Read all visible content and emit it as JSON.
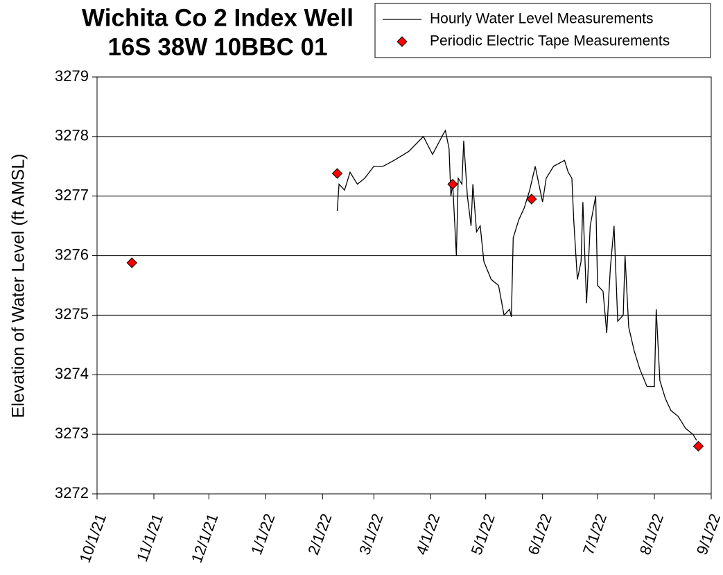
{
  "chart_data": {
    "type": "line",
    "title": "Wichita Co 2 Index Well",
    "subtitle": "16S 38W 10BBC 01",
    "y_label": "Elevation of Water Level (ft AMSL)",
    "ylim": [
      3272,
      3279
    ],
    "yticks": [
      3272,
      3273,
      3274,
      3275,
      3276,
      3277,
      3278,
      3279
    ],
    "xlim": [
      "2021-10-01",
      "2022-09-01"
    ],
    "xticks": [
      {
        "value": "2021-10-01",
        "label": "10/1/21"
      },
      {
        "value": "2021-11-01",
        "label": "11/1/21"
      },
      {
        "value": "2021-12-01",
        "label": "12/1/21"
      },
      {
        "value": "2022-01-01",
        "label": "1/1/22"
      },
      {
        "value": "2022-02-01",
        "label": "2/1/22"
      },
      {
        "value": "2022-03-01",
        "label": "3/1/22"
      },
      {
        "value": "2022-04-01",
        "label": "4/1/22"
      },
      {
        "value": "2022-05-01",
        "label": "5/1/22"
      },
      {
        "value": "2022-06-01",
        "label": "6/1/22"
      },
      {
        "value": "2022-07-01",
        "label": "7/1/22"
      },
      {
        "value": "2022-08-01",
        "label": "8/1/22"
      },
      {
        "value": "2022-09-01",
        "label": "9/1/22"
      }
    ],
    "grid": true,
    "legend": "top-right",
    "series": [
      {
        "name": "Hourly Water Level Measurements",
        "color": "#000000",
        "marker": "line",
        "x": [
          "2022-02-09",
          "2022-02-10",
          "2022-02-13",
          "2022-02-16",
          "2022-02-20",
          "2022-02-24",
          "2022-03-01",
          "2022-03-06",
          "2022-03-12",
          "2022-03-20",
          "2022-03-28",
          "2022-04-02",
          "2022-04-08",
          "2022-04-09",
          "2022-04-11",
          "2022-04-12",
          "2022-04-13",
          "2022-04-15",
          "2022-04-16",
          "2022-04-18",
          "2022-04-19",
          "2022-04-21",
          "2022-04-23",
          "2022-04-24",
          "2022-04-26",
          "2022-04-28",
          "2022-04-30",
          "2022-05-04",
          "2022-05-08",
          "2022-05-11",
          "2022-05-14",
          "2022-05-15",
          "2022-05-16",
          "2022-05-19",
          "2022-05-22",
          "2022-05-25",
          "2022-05-28",
          "2022-06-01",
          "2022-06-03",
          "2022-06-07",
          "2022-06-13",
          "2022-06-15",
          "2022-06-17",
          "2022-06-18",
          "2022-06-20",
          "2022-06-22",
          "2022-06-23",
          "2022-06-25",
          "2022-06-27",
          "2022-06-30",
          "2022-07-01",
          "2022-07-04",
          "2022-07-06",
          "2022-07-08",
          "2022-07-10",
          "2022-07-12",
          "2022-07-15",
          "2022-07-16",
          "2022-07-18",
          "2022-07-21",
          "2022-07-24",
          "2022-07-28",
          "2022-08-01",
          "2022-08-02",
          "2022-08-04",
          "2022-08-07",
          "2022-08-10",
          "2022-08-14",
          "2022-08-18",
          "2022-08-22",
          "2022-08-24"
        ],
        "values": [
          3276.75,
          3277.2,
          3277.1,
          3277.4,
          3277.2,
          3277.3,
          3277.5,
          3277.5,
          3277.6,
          3277.75,
          3278.0,
          3277.7,
          3278.05,
          3278.1,
          3277.8,
          3277.0,
          3277.2,
          3276.0,
          3277.3,
          3277.2,
          3277.93,
          3277.0,
          3276.5,
          3277.2,
          3276.4,
          3276.5,
          3275.9,
          3275.6,
          3275.5,
          3275.0,
          3275.1,
          3274.97,
          3276.3,
          3276.6,
          3276.8,
          3277.1,
          3277.5,
          3276.9,
          3277.3,
          3277.5,
          3277.6,
          3277.4,
          3277.3,
          3276.6,
          3275.6,
          3275.9,
          3276.9,
          3275.2,
          3276.5,
          3277.0,
          3275.5,
          3275.4,
          3274.7,
          3275.8,
          3276.5,
          3274.9,
          3275.0,
          3276.0,
          3274.8,
          3274.4,
          3274.1,
          3273.8,
          3273.8,
          3275.1,
          3273.9,
          3273.6,
          3273.4,
          3273.3,
          3273.1,
          3273.0,
          3272.9
        ]
      },
      {
        "name": "Periodic Electric Tape Measurements",
        "color": "#ff0000",
        "marker": "diamond",
        "x": [
          "2021-10-20",
          "2022-02-09",
          "2022-04-13",
          "2022-05-26",
          "2022-08-25"
        ],
        "values": [
          3275.88,
          3277.38,
          3277.2,
          3276.95,
          3272.8
        ]
      }
    ]
  }
}
